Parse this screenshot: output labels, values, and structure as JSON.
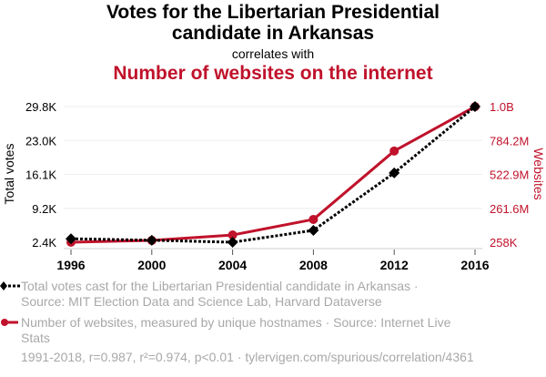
{
  "header": {
    "title_line1": "Votes for the Libertarian Presidential",
    "title_line2": "candidate in Arkansas",
    "subtitle": "correlates with",
    "title2": "Number of websites on the internet"
  },
  "colors": {
    "series1": "#000000",
    "series2": "#c0122b",
    "grid": "#eeeeee",
    "muted_text": "#a8a8a8"
  },
  "chart_data": {
    "type": "line",
    "title": "Votes for the Libertarian Presidential candidate in Arkansas correlates with Number of websites on the internet",
    "x": [
      1996,
      2000,
      2004,
      2008,
      2012,
      2016
    ],
    "x_tick_labels": [
      "1996",
      "2000",
      "2004",
      "2008",
      "2012",
      "2016"
    ],
    "xlim": [
      1996,
      2016
    ],
    "y_left": {
      "label": "Total votes",
      "tick_labels": [
        "2.4K",
        "9.2K",
        "16.1K",
        "23.0K",
        "29.8K"
      ],
      "range": [
        2.4,
        29.8
      ],
      "units": "thousands"
    },
    "y_right": {
      "label": "Websites",
      "tick_labels": [
        "258K",
        "261.6M",
        "522.9M",
        "784.2M",
        "1.0B"
      ],
      "range": [
        0.258,
        1045.5
      ],
      "units": "millions"
    },
    "grid": true,
    "series": [
      {
        "name": "Total votes cast for the Libertarian Presidential candidate in Arkansas",
        "axis": "left",
        "style": "dotted",
        "marker": "diamond",
        "values": [
          3.1,
          2.8,
          2.4,
          4.8,
          16.4,
          29.8
        ]
      },
      {
        "name": "Number of websites, measured by unique hostnames",
        "axis": "right",
        "style": "solid",
        "marker": "circle",
        "values": [
          0.258,
          14,
          56,
          176,
          703,
          1045
        ]
      }
    ]
  },
  "legend": {
    "items": [
      {
        "line1": "Total votes cast for the Libertarian Presidential candidate in Arkansas ·",
        "line2": "Source: MIT Election Data and Science Lab, Harvard Dataverse"
      },
      {
        "line1": "Number of websites, measured by unique hostnames · Source: Internet Live",
        "line2": "Stats"
      }
    ]
  },
  "footer": {
    "text": "1991-2018, r=0.987, r²=0.974, p<0.01 · tylervigen.com/spurious/correlation/4361"
  }
}
